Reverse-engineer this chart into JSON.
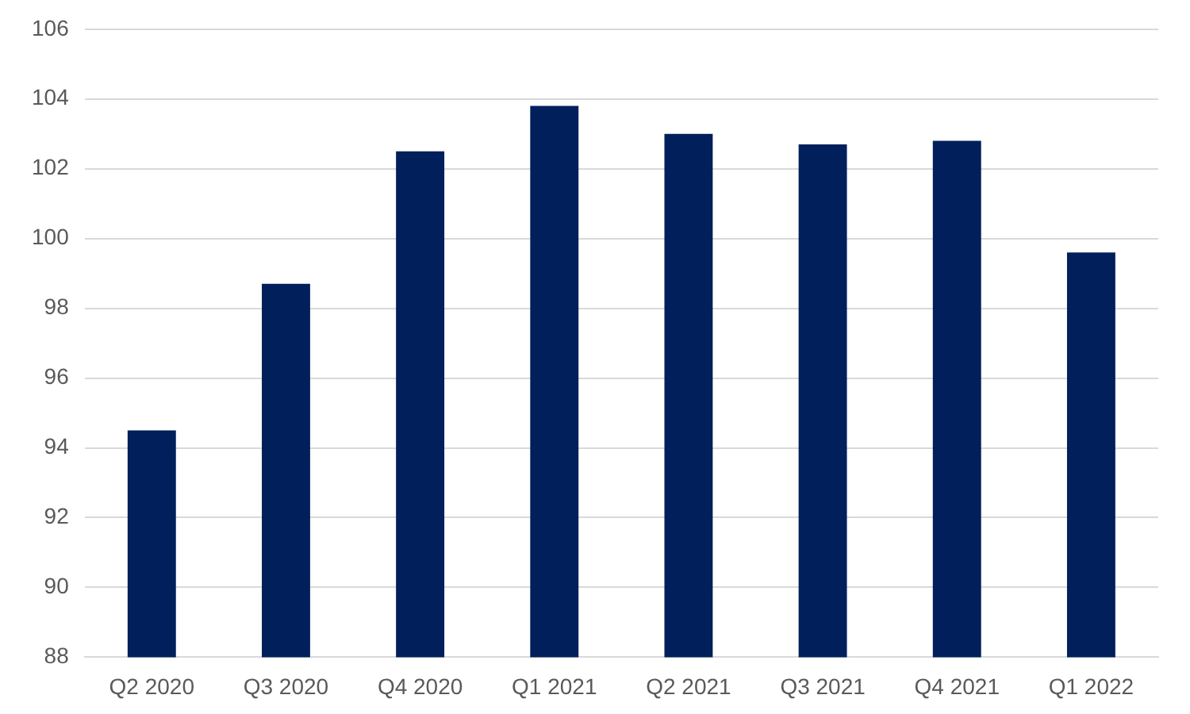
{
  "chart_data": {
    "type": "bar",
    "categories": [
      "Q2 2020",
      "Q3 2020",
      "Q4 2020",
      "Q1 2021",
      "Q2 2021",
      "Q3 2021",
      "Q4 2021",
      "Q1 2022"
    ],
    "values": [
      94.5,
      98.7,
      102.5,
      103.8,
      103,
      102.7,
      102.8,
      99.6
    ],
    "color": "#001f5b",
    "ylim": [
      88,
      106
    ],
    "yticks": [
      88,
      90,
      92,
      94,
      96,
      98,
      100,
      102,
      104,
      106
    ],
    "grid": "y"
  }
}
